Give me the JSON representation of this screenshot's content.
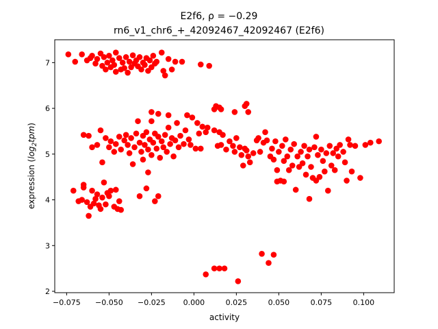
{
  "chart_data": {
    "type": "scatter",
    "title_line1": "E2f6, ρ = −0.29",
    "title_line2": "rn6_v1_chr6_+_42092467_42092467 (E2f6)",
    "xlabel": "activity",
    "ylabel_prefix": "expression (",
    "ylabel_log": "log",
    "ylabel_sub": "2",
    "ylabel_tpm": "tpm",
    "ylabel_suffix": ")",
    "xlim": [
      -0.082,
      0.118
    ],
    "ylim": [
      1.97,
      7.5
    ],
    "xticks": [
      {
        "value": -0.075,
        "label": "−0.075"
      },
      {
        "value": -0.05,
        "label": "−0.050"
      },
      {
        "value": -0.025,
        "label": "−0.025"
      },
      {
        "value": 0.0,
        "label": "0.000"
      },
      {
        "value": 0.025,
        "label": "0.025"
      },
      {
        "value": 0.05,
        "label": "0.050"
      },
      {
        "value": 0.075,
        "label": "0.075"
      },
      {
        "value": 0.1,
        "label": "0.100"
      }
    ],
    "yticks": [
      {
        "value": 2,
        "label": "2"
      },
      {
        "value": 3,
        "label": "3"
      },
      {
        "value": 4,
        "label": "4"
      },
      {
        "value": 5,
        "label": "5"
      },
      {
        "value": 6,
        "label": "6"
      },
      {
        "value": 7,
        "label": "7"
      }
    ],
    "grid": false,
    "marker_color": "#ff0000",
    "points": [
      [
        -0.074,
        7.18
      ],
      [
        -0.07,
        7.02
      ],
      [
        -0.066,
        7.18
      ],
      [
        -0.063,
        7.05
      ],
      [
        -0.061,
        7.1
      ],
      [
        -0.06,
        7.15
      ],
      [
        -0.058,
        6.98
      ],
      [
        -0.057,
        7.08
      ],
      [
        -0.055,
        7.2
      ],
      [
        -0.054,
        6.93
      ],
      [
        -0.053,
        7.12
      ],
      [
        -0.052,
        6.85
      ],
      [
        -0.051,
        7.0
      ],
      [
        -0.05,
        7.15
      ],
      [
        -0.049,
        6.9
      ],
      [
        -0.048,
        7.05
      ],
      [
        -0.047,
        6.95
      ],
      [
        -0.046,
        7.22
      ],
      [
        -0.046,
        6.8
      ],
      [
        -0.044,
        7.1
      ],
      [
        -0.043,
        6.85
      ],
      [
        -0.042,
        7.0
      ],
      [
        -0.041,
        6.88
      ],
      [
        -0.04,
        7.12
      ],
      [
        -0.039,
        6.78
      ],
      [
        -0.038,
        7.02
      ],
      [
        -0.037,
        6.9
      ],
      [
        -0.036,
        7.16
      ],
      [
        -0.035,
        6.98
      ],
      [
        -0.034,
        7.05
      ],
      [
        -0.033,
        6.92
      ],
      [
        -0.032,
        7.12
      ],
      [
        -0.031,
        6.85
      ],
      [
        -0.03,
        7.0
      ],
      [
        -0.029,
        6.95
      ],
      [
        -0.028,
        7.1
      ],
      [
        -0.027,
        6.82
      ],
      [
        -0.026,
        7.05
      ],
      [
        -0.025,
        6.9
      ],
      [
        -0.024,
        7.15
      ],
      [
        -0.023,
        6.98
      ],
      [
        -0.022,
        7.02
      ],
      [
        -0.019,
        7.22
      ],
      [
        -0.018,
        6.82
      ],
      [
        -0.017,
        6.72
      ],
      [
        -0.015,
        7.08
      ],
      [
        -0.013,
        6.85
      ],
      [
        -0.011,
        7.02
      ],
      [
        -0.007,
        7.02
      ],
      [
        0.004,
        6.96
      ],
      [
        0.009,
        6.93
      ],
      [
        -0.065,
        5.42
      ],
      [
        -0.062,
        5.4
      ],
      [
        -0.06,
        5.15
      ],
      [
        -0.057,
        5.2
      ],
      [
        -0.055,
        5.52
      ],
      [
        -0.054,
        4.82
      ],
      [
        -0.052,
        5.35
      ],
      [
        -0.05,
        5.15
      ],
      [
        -0.049,
        5.28
      ],
      [
        -0.047,
        5.05
      ],
      [
        -0.046,
        5.22
      ],
      [
        -0.044,
        5.38
      ],
      [
        -0.043,
        5.1
      ],
      [
        -0.041,
        5.3
      ],
      [
        -0.04,
        5.42
      ],
      [
        -0.039,
        5.2
      ],
      [
        -0.038,
        5.02
      ],
      [
        -0.037,
        5.35
      ],
      [
        -0.036,
        4.78
      ],
      [
        -0.035,
        5.15
      ],
      [
        -0.034,
        5.45
      ],
      [
        -0.033,
        5.72
      ],
      [
        -0.032,
        5.25
      ],
      [
        -0.031,
        5.05
      ],
      [
        -0.03,
        4.88
      ],
      [
        -0.03,
        5.4
      ],
      [
        -0.029,
        5.2
      ],
      [
        -0.028,
        5.48
      ],
      [
        -0.027,
        5.1
      ],
      [
        -0.026,
        5.32
      ],
      [
        -0.025,
        4.98
      ],
      [
        -0.025,
        5.72
      ],
      [
        -0.024,
        5.25
      ],
      [
        -0.023,
        5.45
      ],
      [
        -0.022,
        5.12
      ],
      [
        -0.021,
        5.38
      ],
      [
        -0.02,
        4.92
      ],
      [
        -0.019,
        5.28
      ],
      [
        -0.018,
        5.15
      ],
      [
        -0.017,
        5.42
      ],
      [
        -0.016,
        5.05
      ],
      [
        -0.015,
        5.58
      ],
      [
        -0.014,
        5.22
      ],
      [
        -0.013,
        5.35
      ],
      [
        -0.012,
        4.95
      ],
      [
        -0.011,
        5.3
      ],
      [
        -0.01,
        5.68
      ],
      [
        -0.009,
        5.15
      ],
      [
        -0.008,
        5.4
      ],
      [
        -0.006,
        5.22
      ],
      [
        -0.005,
        5.52
      ],
      [
        -0.004,
        5.85
      ],
      [
        -0.003,
        5.32
      ],
      [
        -0.002,
        5.2
      ],
      [
        -0.001,
        5.8
      ],
      [
        0.001,
        5.12
      ],
      [
        0.002,
        5.68
      ],
      [
        0.003,
        5.45
      ],
      [
        0.004,
        5.12
      ],
      [
        0.005,
        5.6
      ],
      [
        0.007,
        5.48
      ],
      [
        0.008,
        5.58
      ],
      [
        -0.025,
        5.92
      ],
      [
        -0.021,
        5.88
      ],
      [
        -0.015,
        5.85
      ],
      [
        0.012,
        5.98
      ],
      [
        0.013,
        6.05
      ],
      [
        0.015,
        6.02
      ],
      [
        0.016,
        5.98
      ],
      [
        0.024,
        5.92
      ],
      [
        0.03,
        6.05
      ],
      [
        0.031,
        6.1
      ],
      [
        0.032,
        5.92
      ],
      [
        0.012,
        5.52
      ],
      [
        0.014,
        5.18
      ],
      [
        0.015,
        5.48
      ],
      [
        0.016,
        5.2
      ],
      [
        0.017,
        5.42
      ],
      [
        0.019,
        5.1
      ],
      [
        0.021,
        5.28
      ],
      [
        0.023,
        5.18
      ],
      [
        0.024,
        5.05
      ],
      [
        0.025,
        5.35
      ],
      [
        0.027,
        5.15
      ],
      [
        0.028,
        4.98
      ],
      [
        0.029,
        4.75
      ],
      [
        0.03,
        5.12
      ],
      [
        0.031,
        5.08
      ],
      [
        0.032,
        4.95
      ],
      [
        0.033,
        4.82
      ],
      [
        0.035,
        5.02
      ],
      [
        0.037,
        5.3
      ],
      [
        0.038,
        5.35
      ],
      [
        0.039,
        5.05
      ],
      [
        0.041,
        5.25
      ],
      [
        0.042,
        5.48
      ],
      [
        0.043,
        5.3
      ],
      [
        0.045,
        4.95
      ],
      [
        0.046,
        5.12
      ],
      [
        0.047,
        4.88
      ],
      [
        0.048,
        5.28
      ],
      [
        0.049,
        4.65
      ],
      [
        0.049,
        4.4
      ],
      [
        0.05,
        5.05
      ],
      [
        0.051,
        4.42
      ],
      [
        0.052,
        5.18
      ],
      [
        0.053,
        4.85
      ],
      [
        0.053,
        4.4
      ],
      [
        0.054,
        5.32
      ],
      [
        0.055,
        4.95
      ],
      [
        0.056,
        4.65
      ],
      [
        0.057,
        5.1
      ],
      [
        0.058,
        4.75
      ],
      [
        0.059,
        5.22
      ],
      [
        0.06,
        4.22
      ],
      [
        0.061,
        4.95
      ],
      [
        0.062,
        4.72
      ],
      [
        0.063,
        5.05
      ],
      [
        0.064,
        4.8
      ],
      [
        0.065,
        5.18
      ],
      [
        0.066,
        4.55
      ],
      [
        0.067,
        4.95
      ],
      [
        0.068,
        5.1
      ],
      [
        0.069,
        4.72
      ],
      [
        0.07,
        4.48
      ],
      [
        0.071,
        5.15
      ],
      [
        0.072,
        5.38
      ],
      [
        0.073,
        4.98
      ],
      [
        0.074,
        4.5
      ],
      [
        0.075,
        5.1
      ],
      [
        0.076,
        4.85
      ],
      [
        0.077,
        4.62
      ],
      [
        0.078,
        5.02
      ],
      [
        0.079,
        4.2
      ],
      [
        0.08,
        5.18
      ],
      [
        0.081,
        4.75
      ],
      [
        0.082,
        5.02
      ],
      [
        0.083,
        4.65
      ],
      [
        0.084,
        5.12
      ],
      [
        0.085,
        4.95
      ],
      [
        0.086,
        5.2
      ],
      [
        0.088,
        5.05
      ],
      [
        0.089,
        4.82
      ],
      [
        0.09,
        4.42
      ],
      [
        0.091,
        5.32
      ],
      [
        0.092,
        5.2
      ],
      [
        0.093,
        4.62
      ],
      [
        0.095,
        5.18
      ],
      [
        0.098,
        4.48
      ],
      [
        0.101,
        5.2
      ],
      [
        0.104,
        5.25
      ],
      [
        0.109,
        5.28
      ],
      [
        0.068,
        4.02
      ],
      [
        0.072,
        4.42
      ],
      [
        -0.071,
        4.2
      ],
      [
        -0.068,
        3.97
      ],
      [
        -0.066,
        4.0
      ],
      [
        -0.065,
        4.33
      ],
      [
        -0.065,
        4.27
      ],
      [
        -0.063,
        3.95
      ],
      [
        -0.062,
        3.65
      ],
      [
        -0.061,
        3.85
      ],
      [
        -0.06,
        4.2
      ],
      [
        -0.059,
        3.92
      ],
      [
        -0.058,
        4.02
      ],
      [
        -0.057,
        4.12
      ],
      [
        -0.056,
        3.88
      ],
      [
        -0.055,
        3.8
      ],
      [
        -0.054,
        4.05
      ],
      [
        -0.053,
        4.38
      ],
      [
        -0.052,
        3.9
      ],
      [
        -0.051,
        4.15
      ],
      [
        -0.05,
        4.08
      ],
      [
        -0.049,
        4.2
      ],
      [
        -0.047,
        3.85
      ],
      [
        -0.046,
        4.22
      ],
      [
        -0.045,
        3.8
      ],
      [
        -0.044,
        3.97
      ],
      [
        -0.043,
        3.78
      ],
      [
        -0.032,
        4.08
      ],
      [
        -0.028,
        4.25
      ],
      [
        -0.023,
        3.97
      ],
      [
        -0.021,
        4.08
      ],
      [
        -0.027,
        4.6
      ],
      [
        0.007,
        2.37
      ],
      [
        0.012,
        2.5
      ],
      [
        0.015,
        2.5
      ],
      [
        0.018,
        2.5
      ],
      [
        0.026,
        2.22
      ],
      [
        0.04,
        2.82
      ],
      [
        0.044,
        2.62
      ],
      [
        0.047,
        2.8
      ]
    ]
  }
}
